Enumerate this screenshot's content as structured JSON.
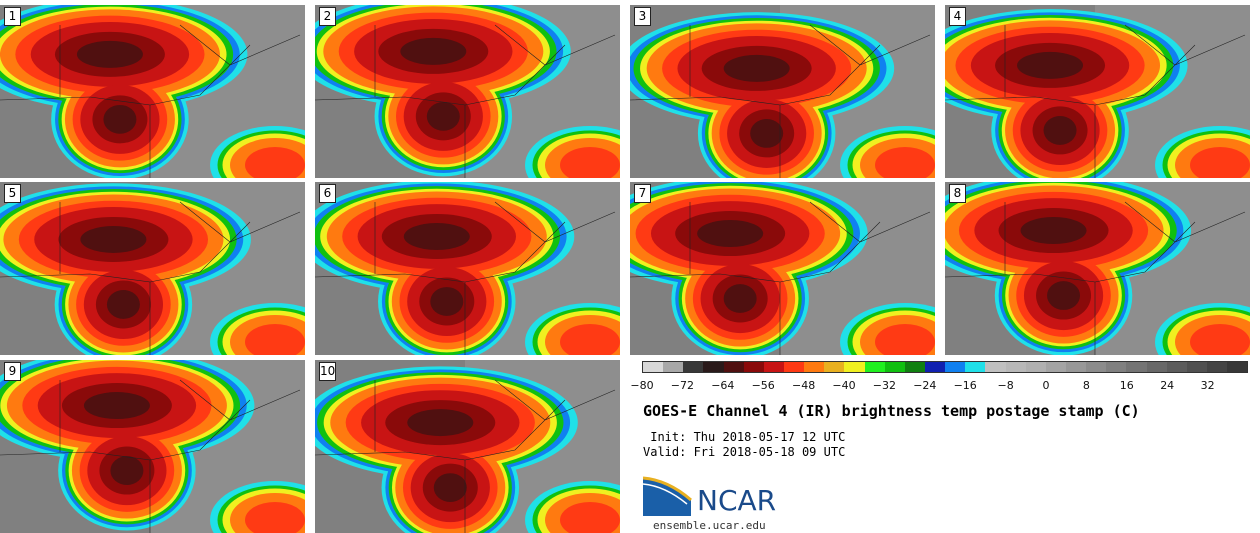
{
  "chart_data": {
    "type": "heatmap",
    "title": "GOES-E Channel 4 (IR) brightness temp postage stamp (C)",
    "init_label": " Init: Thu 2018-05-17 12 UTC",
    "valid_label": "Valid: Fri 2018-05-18 09 UTC",
    "colorbar": {
      "ticks": [
        "−80",
        "−72",
        "−64",
        "−56",
        "−48",
        "−40",
        "−32",
        "−24",
        "−16",
        "−8",
        "0",
        "8",
        "16",
        "24",
        "32"
      ],
      "range": [
        -80,
        40
      ],
      "step": 4,
      "colors": [
        "#d8d8d8",
        "#a8a8a8",
        "#383838",
        "#2a1a1a",
        "#501010",
        "#8a0a0a",
        "#c81414",
        "#ff3a14",
        "#ff7a10",
        "#e8b020",
        "#f0f020",
        "#20f020",
        "#10c010",
        "#108010",
        "#1020b0",
        "#1080f0",
        "#20e0e8",
        "#c0c0c0",
        "#b8b8b8",
        "#b0b0b0",
        "#a4a4a4",
        "#989898",
        "#8c8c8c",
        "#808080",
        "#747474",
        "#686868",
        "#5c5c5c",
        "#505050",
        "#444444",
        "#383838"
      ]
    },
    "panels": [
      "1",
      "2",
      "3",
      "4",
      "5",
      "6",
      "7",
      "8",
      "9",
      "10"
    ]
  },
  "branding": {
    "logo_text": "NCAR",
    "url": "ensemble.ucar.edu"
  }
}
